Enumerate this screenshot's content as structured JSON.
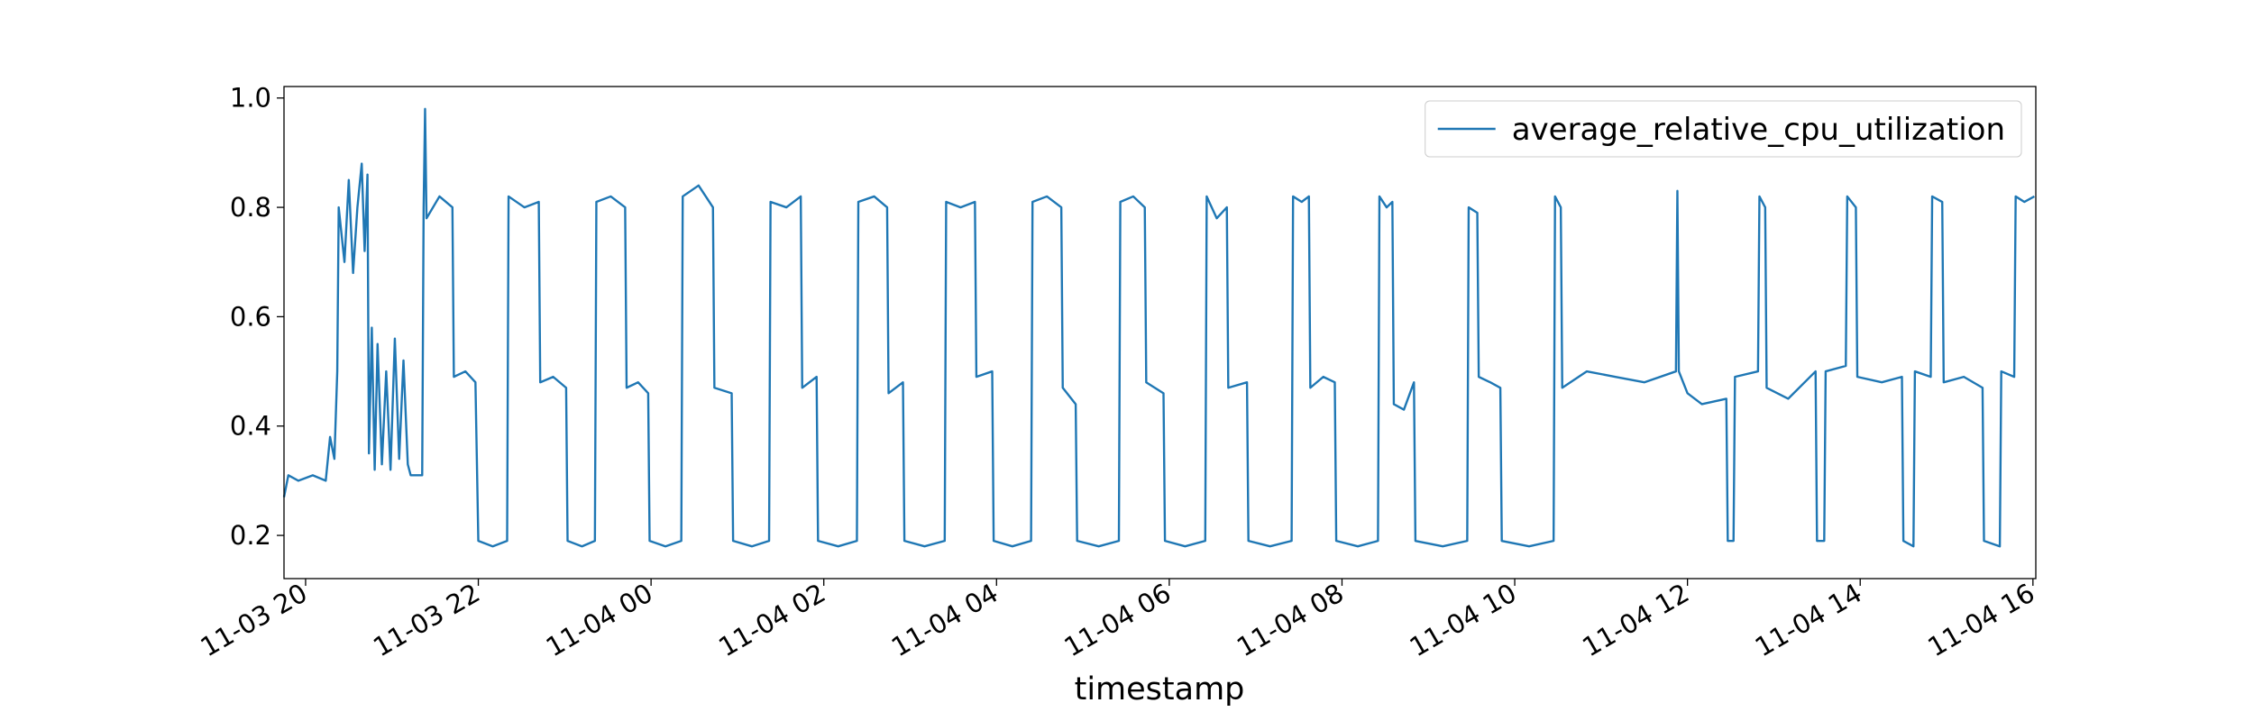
{
  "chart_data": {
    "type": "line",
    "x_label": "timestamp",
    "legend": "upper right",
    "grid": false,
    "xlim": [
      "11-03 19:45",
      "11-04 16:02"
    ],
    "xticks": [
      "11-03 20",
      "11-03 22",
      "11-04 00",
      "11-04 02",
      "11-04 04",
      "11-04 06",
      "11-04 08",
      "11-04 10",
      "11-04 12",
      "11-04 14",
      "11-04 16"
    ],
    "ylim": [
      0.121,
      1.021
    ],
    "yticks": [
      0.2,
      0.4,
      0.6,
      0.8,
      {
        "value": 1,
        "label": "1.0"
      }
    ],
    "x": [
      "11-03 19:45",
      "11-03 19:48",
      "11-03 19:55",
      "11-03 20:05",
      "11-03 20:14",
      "11-03 20:17",
      "11-03 20:20",
      "11-03 20:22",
      "11-03 20:23",
      "11-03 20:27",
      "11-03 20:30",
      "11-03 20:33",
      "11-03 20:36",
      "11-03 20:39",
      "11-03 20:41",
      "11-03 20:43",
      "11-03 20:44",
      "11-03 20:46",
      "11-03 20:48",
      "11-03 20:50",
      "11-03 20:53",
      "11-03 20:56",
      "11-03 20:59",
      "11-03 21:02",
      "11-03 21:05",
      "11-03 21:08",
      "11-03 21:11",
      "11-03 21:13",
      "11-03 21:21",
      "11-03 21:22",
      "11-03 21:23",
      "11-03 21:24",
      "11-03 21:33",
      "11-03 21:42",
      "11-03 21:43",
      "11-03 21:51",
      "11-03 21:58",
      "11-03 22:00",
      "11-03 22:10",
      "11-03 22:20",
      "11-03 22:21",
      "11-03 22:32",
      "11-03 22:42",
      "11-03 22:43",
      "11-03 22:52",
      "11-03 23:01",
      "11-03 23:02",
      "11-03 23:12",
      "11-03 23:21",
      "11-03 23:22",
      "11-03 23:32",
      "11-03 23:42",
      "11-03 23:43",
      "11-03 23:51",
      "11-03 23:58",
      "11-03 23:59",
      "11-04 00:10",
      "11-04 00:21",
      "11-04 00:22",
      "11-04 00:33",
      "11-04 00:43",
      "11-04 00:44",
      "11-04 00:56",
      "11-04 00:57",
      "11-04 01:10",
      "11-04 01:22",
      "11-04 01:23",
      "11-04 01:34",
      "11-04 01:44",
      "11-04 01:45",
      "11-04 01:55",
      "11-04 01:56",
      "11-04 02:10",
      "11-04 02:23",
      "11-04 02:24",
      "11-04 02:35",
      "11-04 02:44",
      "11-04 02:45",
      "11-04 02:55",
      "11-04 02:56",
      "11-04 03:10",
      "11-04 03:24",
      "11-04 03:25",
      "11-04 03:35",
      "11-04 03:45",
      "11-04 03:46",
      "11-04 03:57",
      "11-04 03:58",
      "11-04 04:11",
      "11-04 04:24",
      "11-04 04:25",
      "11-04 04:35",
      "11-04 04:45",
      "11-04 04:46",
      "11-04 04:55",
      "11-04 04:56",
      "11-04 05:11",
      "11-04 05:25",
      "11-04 05:26",
      "11-04 05:35",
      "11-04 05:43",
      "11-04 05:44",
      "11-04 05:56",
      "11-04 05:57",
      "11-04 06:11",
      "11-04 06:25",
      "11-04 06:26",
      "11-04 06:33",
      "11-04 06:40",
      "11-04 06:41",
      "11-04 06:54",
      "11-04 06:55",
      "11-04 07:10",
      "11-04 07:25",
      "11-04 07:26",
      "11-04 07:32",
      "11-04 07:37",
      "11-04 07:38",
      "11-04 07:47",
      "11-04 07:55",
      "11-04 07:56",
      "11-04 08:11",
      "11-04 08:25",
      "11-04 08:26",
      "11-04 08:31",
      "11-04 08:35",
      "11-04 08:36",
      "11-04 08:43",
      "11-04 08:50",
      "11-04 08:51",
      "11-04 09:10",
      "11-04 09:27",
      "11-04 09:28",
      "11-04 09:34",
      "11-04 09:35",
      "11-04 09:43",
      "11-04 09:50",
      "11-04 09:51",
      "11-04 10:10",
      "11-04 10:27",
      "11-04 10:28",
      "11-04 10:32",
      "11-04 10:33",
      "11-04 10:50",
      "11-04 11:10",
      "11-04 11:30",
      "11-04 11:52",
      "11-04 11:53",
      "11-04 11:54",
      "11-04 12:00",
      "11-04 12:10",
      "11-04 12:27",
      "11-04 12:28",
      "11-04 12:32",
      "11-04 12:33",
      "11-04 12:49",
      "11-04 12:50",
      "11-04 12:54",
      "11-04 12:55",
      "11-04 13:10",
      "11-04 13:29",
      "11-04 13:30",
      "11-04 13:35",
      "11-04 13:36",
      "11-04 13:50",
      "11-04 13:51",
      "11-04 13:57",
      "11-04 13:58",
      "11-04 14:15",
      "11-04 14:29",
      "11-04 14:30",
      "11-04 14:37",
      "11-04 14:38",
      "11-04 14:49",
      "11-04 14:50",
      "11-04 14:57",
      "11-04 14:58",
      "11-04 15:12",
      "11-04 15:25",
      "11-04 15:26",
      "11-04 15:37",
      "11-04 15:38",
      "11-04 15:47",
      "11-04 15:48",
      "11-04 15:54",
      "11-04 16:01"
    ],
    "series": [
      {
        "name": "average_relative_cpu_utilization",
        "color": "#1f77b4",
        "values": [
          0.27,
          0.31,
          0.3,
          0.31,
          0.3,
          0.38,
          0.34,
          0.5,
          0.8,
          0.7,
          0.85,
          0.68,
          0.8,
          0.88,
          0.72,
          0.86,
          0.35,
          0.58,
          0.32,
          0.55,
          0.33,
          0.5,
          0.32,
          0.56,
          0.34,
          0.52,
          0.33,
          0.31,
          0.31,
          0.8,
          0.98,
          0.78,
          0.82,
          0.8,
          0.49,
          0.5,
          0.48,
          0.19,
          0.18,
          0.19,
          0.82,
          0.8,
          0.81,
          0.48,
          0.49,
          0.47,
          0.19,
          0.18,
          0.19,
          0.81,
          0.82,
          0.8,
          0.47,
          0.48,
          0.46,
          0.19,
          0.18,
          0.19,
          0.82,
          0.84,
          0.8,
          0.47,
          0.46,
          0.19,
          0.18,
          0.19,
          0.81,
          0.8,
          0.82,
          0.47,
          0.49,
          0.19,
          0.18,
          0.19,
          0.81,
          0.82,
          0.8,
          0.46,
          0.48,
          0.19,
          0.18,
          0.19,
          0.81,
          0.8,
          0.81,
          0.49,
          0.5,
          0.19,
          0.18,
          0.19,
          0.81,
          0.82,
          0.8,
          0.47,
          0.44,
          0.19,
          0.18,
          0.19,
          0.81,
          0.82,
          0.8,
          0.48,
          0.46,
          0.19,
          0.18,
          0.19,
          0.82,
          0.78,
          0.8,
          0.47,
          0.48,
          0.19,
          0.18,
          0.19,
          0.82,
          0.81,
          0.82,
          0.47,
          0.49,
          0.48,
          0.19,
          0.18,
          0.19,
          0.82,
          0.8,
          0.81,
          0.44,
          0.43,
          0.48,
          0.19,
          0.18,
          0.19,
          0.8,
          0.79,
          0.49,
          0.48,
          0.47,
          0.19,
          0.18,
          0.19,
          0.82,
          0.8,
          0.47,
          0.5,
          0.49,
          0.48,
          0.5,
          0.83,
          0.5,
          0.46,
          0.44,
          0.45,
          0.19,
          0.19,
          0.49,
          0.5,
          0.82,
          0.8,
          0.47,
          0.45,
          0.5,
          0.19,
          0.19,
          0.5,
          0.51,
          0.82,
          0.8,
          0.49,
          0.48,
          0.49,
          0.19,
          0.18,
          0.5,
          0.49,
          0.82,
          0.81,
          0.48,
          0.49,
          0.47,
          0.19,
          0.18,
          0.5,
          0.49,
          0.82,
          0.81,
          0.82
        ]
      }
    ]
  }
}
